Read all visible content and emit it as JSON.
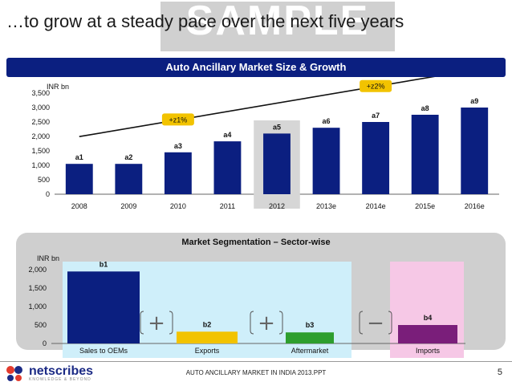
{
  "slide": {
    "title": "…to grow at a steady pace over the next five years",
    "watermark": "SAMPLE",
    "footer": "AUTO ANCILLARY MARKET IN INDIA 2013.PPT",
    "page_number": "5",
    "logo": {
      "name": "netscribes",
      "tagline": "KNOWLEDGE & BEYOND"
    }
  },
  "chart_data": [
    {
      "type": "bar",
      "title": "Auto Ancillary Market Size & Growth",
      "ylabel": "INR bn",
      "ylim": [
        0,
        3500
      ],
      "yticks": [
        0,
        500,
        1000,
        1500,
        2000,
        2500,
        3000,
        3500
      ],
      "ytick_labels": [
        "0",
        "500",
        "1,000",
        "1,500",
        "2,000",
        "2,500",
        "3,000",
        "3,500"
      ],
      "categories": [
        "2008",
        "2009",
        "2010",
        "2011",
        "2012",
        "2013e",
        "2014e",
        "2015e",
        "2016e"
      ],
      "values": [
        1050,
        1050,
        1450,
        1830,
        2100,
        2300,
        2500,
        2750,
        3000
      ],
      "data_labels": [
        "a1",
        "a2",
        "a3",
        "a4",
        "a5",
        "a6",
        "a7",
        "a8",
        "a9"
      ],
      "highlight_category": "2012",
      "bar_color": "#0b1f80",
      "annotations": [
        {
          "text": "+z1%",
          "category": "2010",
          "color": "#f2c300"
        },
        {
          "text": "+z2%",
          "category": "2014e",
          "color": "#f2c300"
        }
      ],
      "grid": false
    },
    {
      "type": "bar",
      "title": "Market Segmentation – Sector-wise",
      "ylabel": "INR bn",
      "ylim": [
        0,
        2000
      ],
      "yticks": [
        0,
        500,
        1000,
        1500,
        2000
      ],
      "ytick_labels": [
        "0",
        "500",
        "1,000",
        "1,500",
        "2,000"
      ],
      "categories": [
        "Sales to OEMs",
        "Exports",
        "Aftermarket",
        "Imports"
      ],
      "values": [
        1950,
        320,
        300,
        500
      ],
      "data_labels": [
        "b1",
        "b2",
        "b3",
        "b4"
      ],
      "bar_colors": [
        "#0b1f80",
        "#f2c300",
        "#2e9e2e",
        "#7a1e7a"
      ],
      "operators": [
        "+",
        "+",
        "−"
      ],
      "grid": false
    }
  ]
}
